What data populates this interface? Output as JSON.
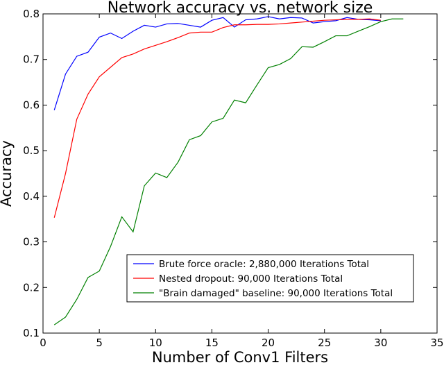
{
  "chart_data": {
    "type": "line",
    "title": "Network accuracy vs. network size",
    "xlabel": "Number of Conv1 Filters",
    "ylabel": "Accuracy",
    "xlim": [
      0,
      35
    ],
    "ylim": [
      0.1,
      0.8
    ],
    "xticks": [
      0,
      5,
      10,
      15,
      20,
      25,
      30,
      35
    ],
    "yticks": [
      0.1,
      0.2,
      0.3,
      0.4,
      0.5,
      0.6,
      0.7,
      0.8
    ],
    "grid": false,
    "legend_position": "lower-right",
    "series": [
      {
        "name": "Brute force oracle: 2,880,000 Iterations Total",
        "color": "#0000ff",
        "x": [
          1,
          2,
          3,
          4,
          5,
          6,
          7,
          8,
          9,
          10,
          11,
          12,
          13,
          14,
          15,
          16,
          17,
          18,
          19,
          20,
          21,
          22,
          23,
          24,
          25,
          26,
          27,
          28,
          29,
          30
        ],
        "y": [
          0.589,
          0.668,
          0.707,
          0.716,
          0.749,
          0.758,
          0.746,
          0.762,
          0.775,
          0.771,
          0.778,
          0.779,
          0.775,
          0.771,
          0.786,
          0.792,
          0.771,
          0.787,
          0.789,
          0.794,
          0.789,
          0.792,
          0.791,
          0.78,
          0.783,
          0.785,
          0.792,
          0.788,
          0.787,
          0.785
        ]
      },
      {
        "name": "Nested dropout: 90,000 Iterations Total",
        "color": "#ff0000",
        "x": [
          1,
          2,
          3,
          4,
          5,
          6,
          7,
          8,
          9,
          10,
          11,
          12,
          13,
          14,
          15,
          16,
          17,
          18,
          19,
          20,
          21,
          22,
          23,
          24,
          25,
          26,
          27,
          28,
          29,
          30
        ],
        "y": [
          0.353,
          0.45,
          0.569,
          0.624,
          0.662,
          0.683,
          0.704,
          0.712,
          0.723,
          0.731,
          0.739,
          0.748,
          0.758,
          0.76,
          0.76,
          0.77,
          0.776,
          0.776,
          0.777,
          0.777,
          0.778,
          0.78,
          0.782,
          0.784,
          0.786,
          0.787,
          0.788,
          0.788,
          0.789,
          0.786
        ]
      },
      {
        "name": "\"Brain damaged\" baseline: 90,000 Iterations Total",
        "color": "#008000",
        "x": [
          1,
          2,
          3,
          4,
          5,
          6,
          7,
          8,
          9,
          10,
          11,
          12,
          13,
          14,
          15,
          16,
          17,
          18,
          19,
          20,
          21,
          22,
          23,
          24,
          25,
          26,
          27,
          28,
          29,
          30,
          31,
          32
        ],
        "y": [
          0.118,
          0.135,
          0.174,
          0.222,
          0.236,
          0.29,
          0.355,
          0.322,
          0.423,
          0.451,
          0.441,
          0.475,
          0.524,
          0.533,
          0.563,
          0.571,
          0.611,
          0.605,
          0.644,
          0.682,
          0.689,
          0.702,
          0.728,
          0.727,
          0.739,
          0.752,
          0.752,
          0.762,
          0.772,
          0.783,
          0.789,
          0.789
        ]
      }
    ]
  }
}
